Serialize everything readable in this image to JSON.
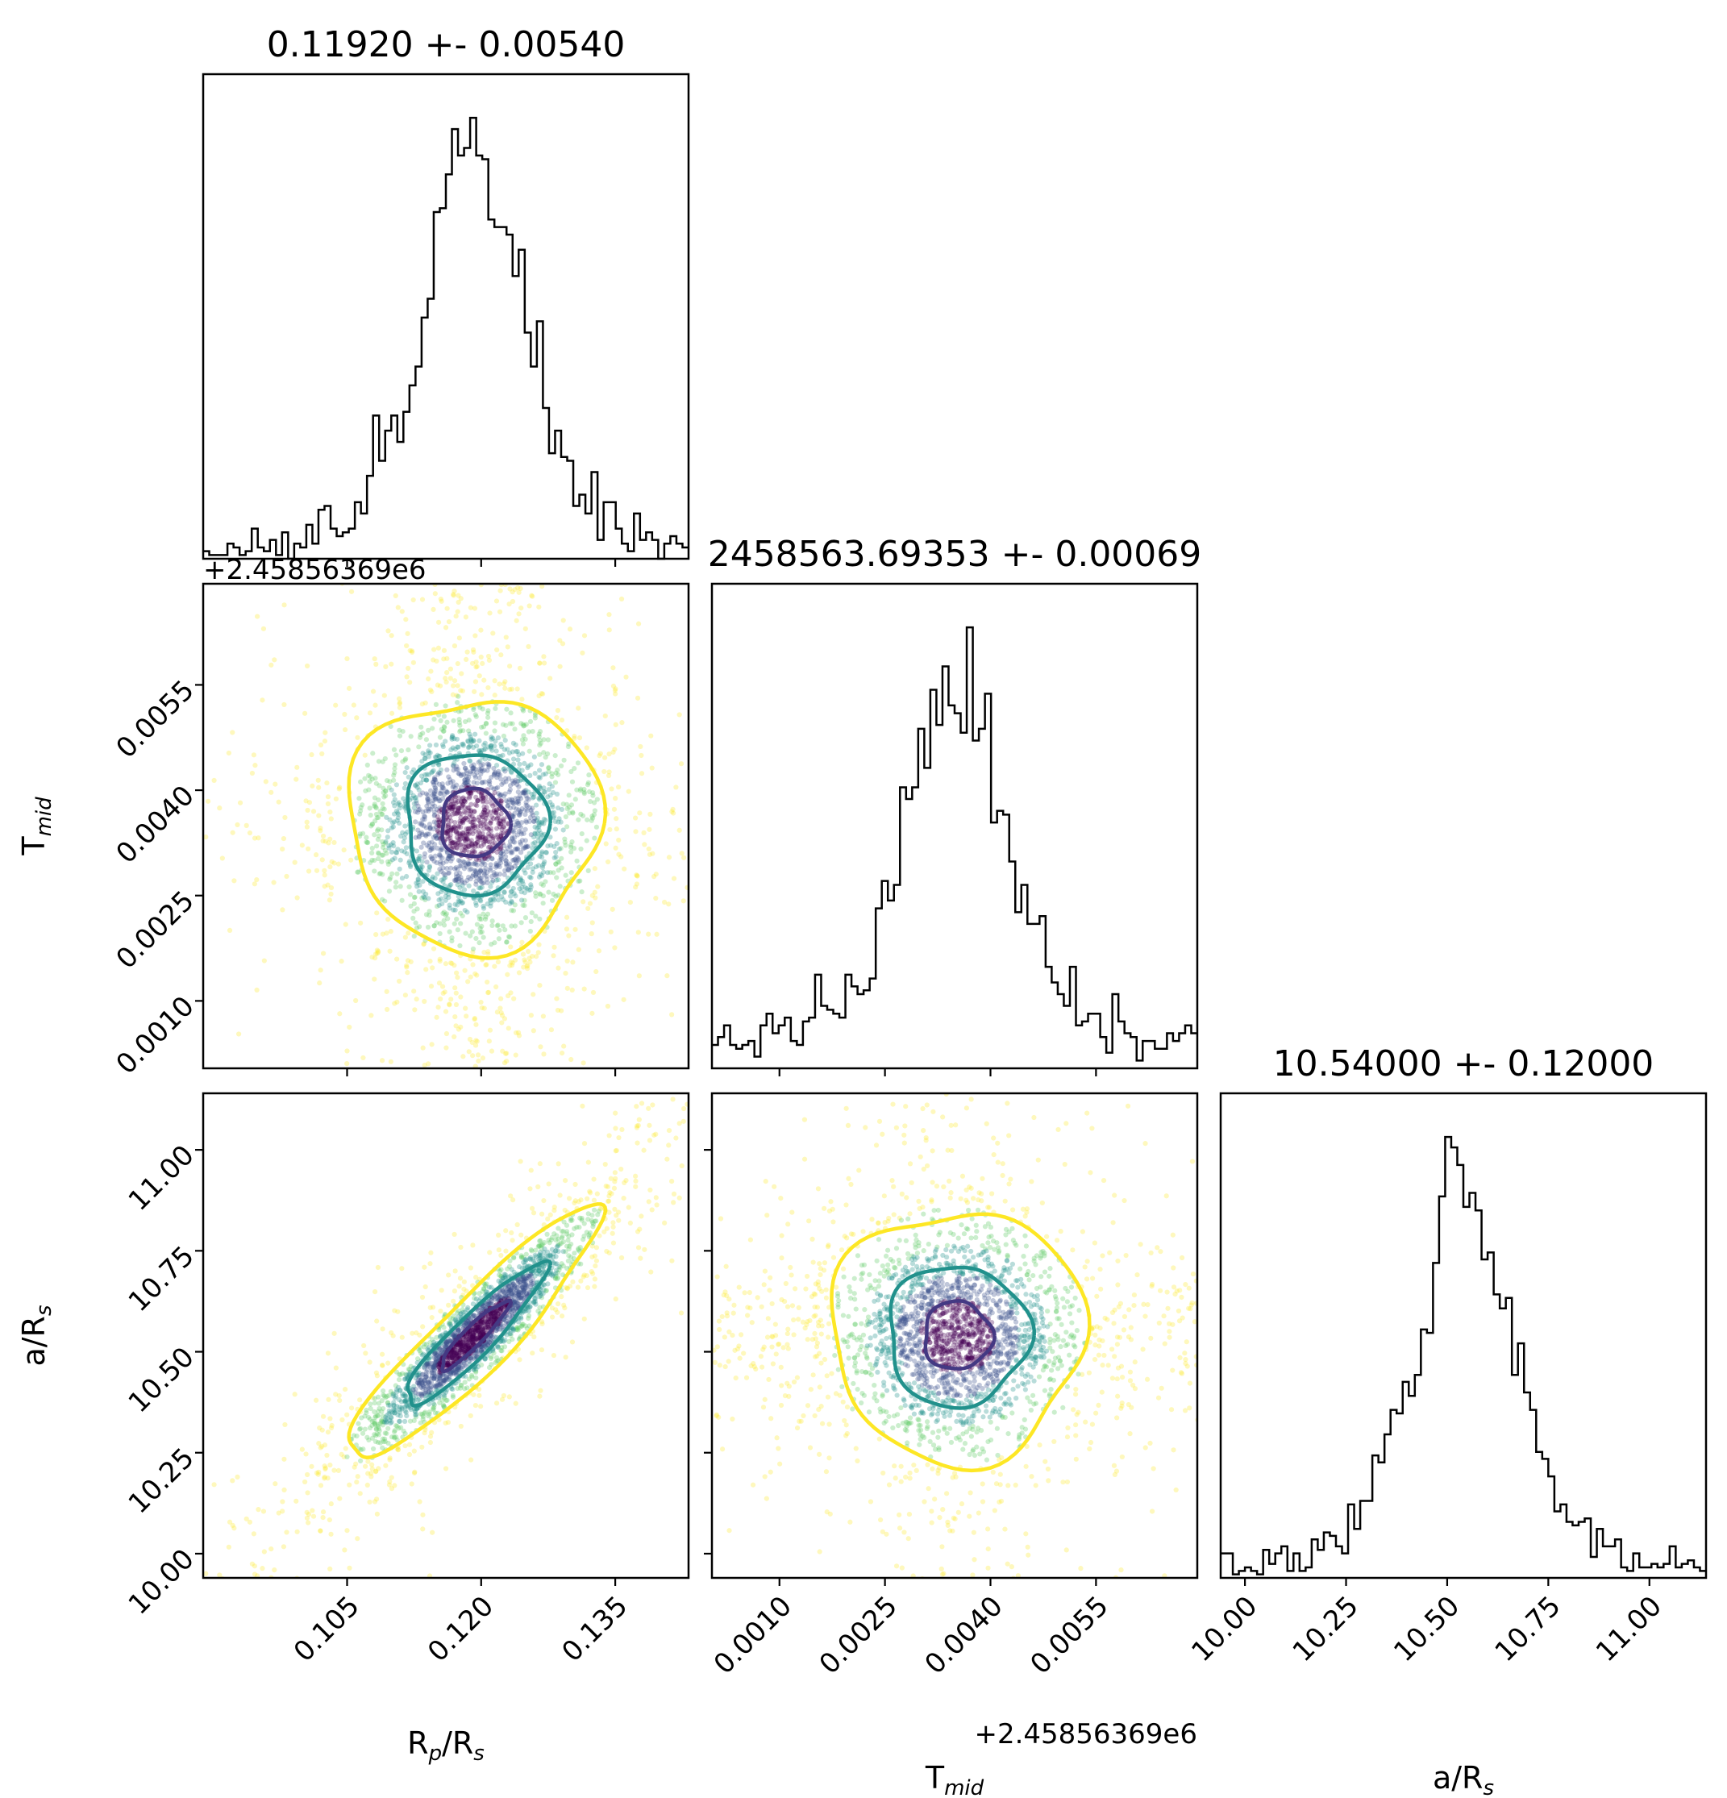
{
  "chart_data": {
    "type": "scatter",
    "subtype": "corner-plot",
    "parameters": [
      {
        "key": "rp",
        "label_base": "R",
        "label_sub": "p",
        "label_tail": "/R",
        "label_tail_sub": "s",
        "median": 0.1192,
        "sigma": 0.0054,
        "range": [
          0.0889,
          0.1432
        ],
        "ticks": [
          0.105,
          0.12,
          0.135
        ],
        "tick_labels": [
          "0.105",
          "0.120",
          "0.135"
        ],
        "title": "0.11920 +- 0.00540"
      },
      {
        "key": "tmid",
        "label_base": "T",
        "label_sub": "mid",
        "label_tail": "",
        "label_tail_sub": "",
        "median": 0.00353,
        "sigma": 0.00069,
        "range": [
          4e-05,
          0.00694
        ],
        "ticks": [
          0.001,
          0.0025,
          0.004,
          0.0055
        ],
        "tick_labels": [
          "0.0010",
          "0.0025",
          "0.0040",
          "0.0055"
        ],
        "offset_label": "+2.45856369e6",
        "title": "2458563.69353 +- 0.00069"
      },
      {
        "key": "ars",
        "label_base": "a/R",
        "label_sub": "s",
        "label_tail": "",
        "label_tail_sub": "",
        "median": 10.54,
        "sigma": 0.12,
        "range": [
          9.94,
          11.14
        ],
        "ticks": [
          10.0,
          10.25,
          10.5,
          10.75,
          11.0
        ],
        "tick_labels": [
          "10.00",
          "10.25",
          "10.50",
          "10.75",
          "11.00"
        ],
        "title": "10.54000 +- 0.12000"
      }
    ],
    "correlations": {
      "rp_ars": 0.92,
      "rp_tmid": 0.0,
      "tmid_ars": 0.0
    },
    "contour_colors": [
      "#fde725",
      "#21918c",
      "#443983"
    ],
    "point_colormap": "viridis",
    "histogram_color": "#000000",
    "grid": false
  }
}
